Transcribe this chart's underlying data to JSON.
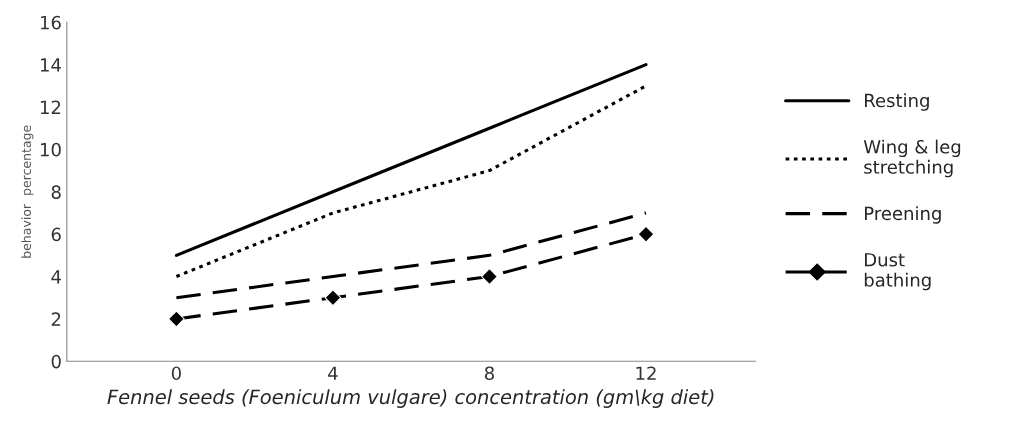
{
  "chart_data": {
    "type": "line",
    "xlabel": "Fennel seeds (Foeniculum vulgare) concentration (gm\\kg diet)",
    "ylabel": "behavior  percentage",
    "categories": [
      "0",
      "4",
      "8",
      "12"
    ],
    "series": [
      {
        "name": "Resting",
        "color": "#000000",
        "values": [
          5,
          8,
          11,
          14
        ],
        "line_style": "solid",
        "marker": "none"
      },
      {
        "name": "Wing & leg\nstretching",
        "color": "#000000",
        "values": [
          4,
          7,
          9,
          13
        ],
        "line_style": "dotted",
        "marker": "none"
      },
      {
        "name": "Preening",
        "color": "#000000",
        "values": [
          3,
          4,
          5,
          7
        ],
        "line_style": "dashed",
        "marker": "none"
      },
      {
        "name": "Dust\nbathing",
        "color": "#000000",
        "values": [
          2,
          3,
          4,
          6
        ],
        "line_style": "dashed",
        "marker": "diamond"
      }
    ],
    "ylim": [
      0,
      16
    ],
    "yticks": [
      0,
      2,
      4,
      6,
      8,
      10,
      12,
      14,
      16
    ],
    "grid": false,
    "legend": "right"
  }
}
